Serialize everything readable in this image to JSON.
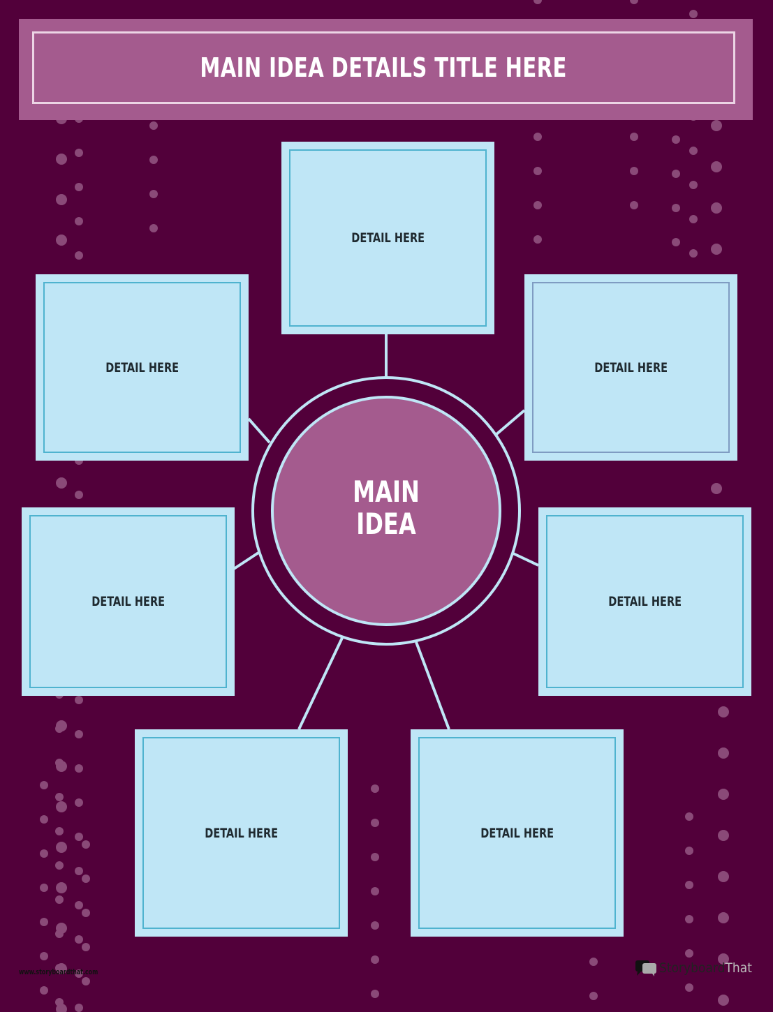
{
  "title": "MAIN IDEA DETAILS TITLE HERE",
  "main_idea": "MAIN IDEA",
  "details": [
    "DETAIL HERE",
    "DETAIL HERE",
    "DETAIL HERE",
    "DETAIL HERE",
    "DETAIL HERE",
    "DETAIL HERE",
    "DETAIL HERE"
  ],
  "footer": {
    "url": "www.storyboardthat.com",
    "logo_story": "Storyboard",
    "logo_that": "That"
  },
  "colors": {
    "background": "#52003a",
    "title_bar": "#a45b8e",
    "box_fill": "#bfe6f6",
    "box_border": "#4fb3cf",
    "connector": "#bfe6f6",
    "center_fill": "#a45b8e",
    "dots": "#8a4a78"
  },
  "icons": {
    "logo": "speech-bubbles-icon"
  }
}
